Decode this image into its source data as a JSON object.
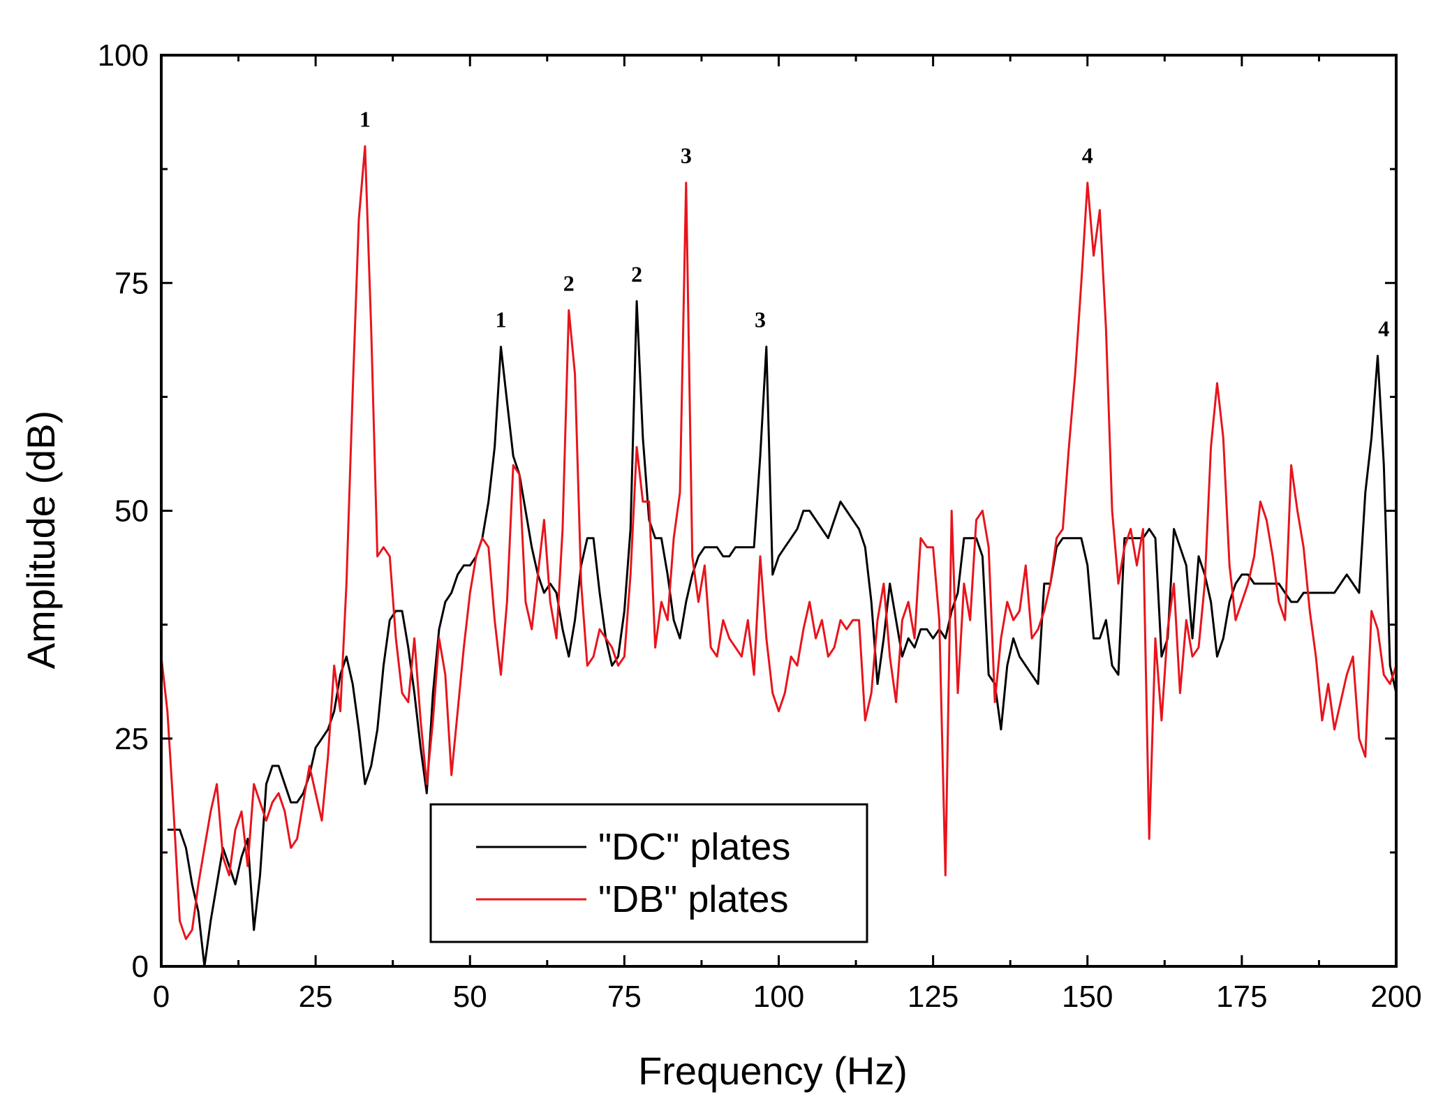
{
  "chart_data": {
    "type": "line",
    "title": "",
    "xlabel": "Frequency (Hz)",
    "ylabel": "Amplitude (dB)",
    "xlim": [
      0,
      200
    ],
    "ylim": [
      0,
      100
    ],
    "x_ticks": [
      0,
      25,
      50,
      75,
      100,
      125,
      150,
      175,
      200
    ],
    "y_ticks": [
      0,
      25,
      50,
      75,
      100
    ],
    "x_minor_step": 12.5,
    "y_minor_step": 12.5,
    "grid": false,
    "legend_position": "bottom-center",
    "series": [
      {
        "name": "\"DC\" plates",
        "color": "#000000",
        "x": [
          1,
          2,
          3,
          4,
          5,
          6,
          7,
          8,
          9,
          10,
          11,
          12,
          13,
          14,
          15,
          16,
          17,
          18,
          19,
          20,
          21,
          22,
          23,
          24,
          25,
          26,
          27,
          28,
          29,
          30,
          31,
          32,
          33,
          34,
          35,
          36,
          37,
          38,
          39,
          40,
          41,
          42,
          43,
          44,
          45,
          46,
          47,
          48,
          49,
          50,
          51,
          52,
          53,
          54,
          55,
          56,
          57,
          58,
          59,
          60,
          61,
          62,
          63,
          64,
          65,
          66,
          67,
          68,
          69,
          70,
          71,
          72,
          73,
          74,
          75,
          76,
          77,
          78,
          79,
          80,
          81,
          82,
          83,
          84,
          85,
          86,
          87,
          88,
          89,
          90,
          91,
          92,
          93,
          94,
          95,
          96,
          97,
          98,
          99,
          100,
          101,
          102,
          103,
          104,
          105,
          106,
          107,
          108,
          109,
          110,
          111,
          112,
          113,
          114,
          115,
          116,
          117,
          118,
          119,
          120,
          121,
          122,
          123,
          124,
          125,
          126,
          127,
          128,
          129,
          130,
          131,
          132,
          133,
          134,
          135,
          136,
          137,
          138,
          139,
          140,
          141,
          142,
          143,
          144,
          145,
          146,
          147,
          148,
          149,
          150,
          151,
          152,
          153,
          154,
          155,
          156,
          157,
          158,
          159,
          160,
          161,
          162,
          163,
          164,
          165,
          166,
          167,
          168,
          169,
          170,
          171,
          172,
          173,
          174,
          175,
          176,
          177,
          178,
          179,
          180,
          181,
          182,
          183,
          184,
          185,
          186,
          187,
          188,
          189,
          190,
          191,
          192,
          193,
          194,
          195,
          196,
          197,
          198,
          199,
          200
        ],
        "y": [
          15,
          15,
          15,
          13,
          9,
          6,
          0,
          5,
          9,
          13,
          11,
          9,
          12,
          14,
          4,
          10,
          20,
          22,
          22,
          20,
          18,
          18,
          19,
          21,
          24,
          25,
          26,
          28,
          32,
          34,
          31,
          26,
          20,
          22,
          26,
          33,
          38,
          39,
          39,
          35,
          30,
          24,
          19,
          30,
          37,
          40,
          41,
          43,
          44,
          44,
          45,
          47,
          51,
          57,
          68,
          62,
          56,
          54,
          50,
          46,
          43,
          41,
          42,
          41,
          37,
          34,
          38,
          44,
          47,
          47,
          41,
          36,
          33,
          34,
          39,
          48,
          73,
          58,
          49,
          47,
          47,
          43,
          38,
          36,
          40,
          43,
          45,
          46,
          46,
          46,
          45,
          45,
          46,
          46,
          46,
          46,
          56,
          68,
          43,
          45,
          46,
          47,
          48,
          50,
          50,
          49,
          48,
          47,
          49,
          51,
          50,
          49,
          48,
          46,
          40,
          31,
          36,
          42,
          38,
          34,
          36,
          35,
          37,
          37,
          36,
          37,
          36,
          39,
          41,
          47,
          47,
          47,
          45,
          32,
          31,
          26,
          33,
          36,
          34,
          33,
          32,
          31,
          42,
          42,
          46,
          47,
          47,
          47,
          47,
          44,
          36,
          36,
          38,
          33,
          32,
          47,
          47,
          47,
          47,
          48,
          47,
          34,
          36,
          48,
          46,
          44,
          36,
          45,
          43,
          40,
          34,
          36,
          40,
          42,
          43,
          43,
          42,
          42,
          42,
          42,
          42,
          41,
          40,
          40,
          41,
          41,
          41,
          41,
          41,
          41,
          42,
          43,
          42,
          41,
          52,
          58,
          67,
          55,
          33,
          30
        ]
      },
      {
        "name": "\"DB\" plates",
        "color": "#e8141c",
        "x": [
          0,
          1,
          2,
          3,
          4,
          5,
          6,
          7,
          8,
          9,
          10,
          11,
          12,
          13,
          14,
          15,
          16,
          17,
          18,
          19,
          20,
          21,
          22,
          23,
          24,
          25,
          26,
          27,
          28,
          29,
          30,
          31,
          32,
          33,
          34,
          35,
          36,
          37,
          38,
          39,
          40,
          41,
          42,
          43,
          44,
          45,
          46,
          47,
          48,
          49,
          50,
          51,
          52,
          53,
          54,
          55,
          56,
          57,
          58,
          59,
          60,
          61,
          62,
          63,
          64,
          65,
          66,
          67,
          68,
          69,
          70,
          71,
          72,
          73,
          74,
          75,
          76,
          77,
          78,
          79,
          80,
          81,
          82,
          83,
          84,
          85,
          86,
          87,
          88,
          89,
          90,
          91,
          92,
          93,
          94,
          95,
          96,
          97,
          98,
          99,
          100,
          101,
          102,
          103,
          104,
          105,
          106,
          107,
          108,
          109,
          110,
          111,
          112,
          113,
          114,
          115,
          116,
          117,
          118,
          119,
          120,
          121,
          122,
          123,
          124,
          125,
          126,
          127,
          128,
          129,
          130,
          131,
          132,
          133,
          134,
          135,
          136,
          137,
          138,
          139,
          140,
          141,
          142,
          143,
          144,
          145,
          146,
          147,
          148,
          149,
          150,
          151,
          152,
          153,
          154,
          155,
          156,
          157,
          158,
          159,
          160,
          161,
          162,
          163,
          164,
          165,
          166,
          167,
          168,
          169,
          170,
          171,
          172,
          173,
          174,
          175,
          176,
          177,
          178,
          179,
          180,
          181,
          182,
          183,
          184,
          185,
          186,
          187,
          188,
          189,
          190,
          191,
          192,
          193,
          194,
          195,
          196,
          197,
          198,
          199,
          200
        ],
        "y": [
          34,
          28,
          17,
          5,
          3,
          4,
          9,
          13,
          17,
          20,
          12,
          10,
          15,
          17,
          11,
          20,
          18,
          16,
          18,
          19,
          17,
          13,
          14,
          18,
          22,
          19,
          16,
          23,
          33,
          28,
          42,
          63,
          82,
          90,
          70,
          45,
          46,
          45,
          36,
          30,
          29,
          36,
          27,
          20,
          27,
          36,
          32,
          21,
          28,
          35,
          41,
          45,
          47,
          46,
          38,
          32,
          40,
          55,
          54,
          40,
          37,
          43,
          49,
          40,
          36,
          48,
          72,
          65,
          42,
          33,
          34,
          37,
          36,
          35,
          33,
          34,
          43,
          57,
          51,
          51,
          35,
          40,
          38,
          47,
          52,
          86,
          45,
          40,
          44,
          35,
          34,
          38,
          36,
          35,
          34,
          38,
          32,
          45,
          36,
          30,
          28,
          30,
          34,
          33,
          37,
          40,
          36,
          38,
          34,
          35,
          38,
          37,
          38,
          38,
          27,
          30,
          38,
          42,
          34,
          29,
          38,
          40,
          36,
          47,
          46,
          46,
          38,
          10,
          50,
          30,
          42,
          38,
          49,
          50,
          46,
          29,
          36,
          40,
          38,
          39,
          44,
          36,
          37,
          39,
          42,
          47,
          48,
          57,
          65,
          75,
          86,
          78,
          83,
          70,
          50,
          42,
          46,
          48,
          44,
          48,
          14,
          36,
          27,
          37,
          42,
          30,
          38,
          34,
          35,
          42,
          57,
          64,
          58,
          44,
          38,
          40,
          42,
          45,
          51,
          49,
          45,
          40,
          38,
          55,
          50,
          46,
          39,
          34,
          27,
          31,
          26,
          29,
          32,
          34,
          25,
          23,
          39,
          37,
          32,
          31,
          33
        ]
      }
    ],
    "annotations": [
      {
        "text": "1",
        "series": "\"DB\" plates",
        "x": 33,
        "y": 90
      },
      {
        "text": "1",
        "series": "\"DC\" plates",
        "x": 55,
        "y": 68
      },
      {
        "text": "2",
        "series": "\"DB\" plates",
        "x": 66,
        "y": 72
      },
      {
        "text": "2",
        "series": "\"DC\" plates",
        "x": 77,
        "y": 73
      },
      {
        "text": "3",
        "series": "\"DB\" plates",
        "x": 85,
        "y": 86
      },
      {
        "text": "3",
        "series": "\"DC\" plates",
        "x": 97,
        "y": 68
      },
      {
        "text": "4",
        "series": "\"DB\" plates",
        "x": 150,
        "y": 86
      },
      {
        "text": "4",
        "series": "\"DC\" plates",
        "x": 198,
        "y": 67
      }
    ]
  }
}
